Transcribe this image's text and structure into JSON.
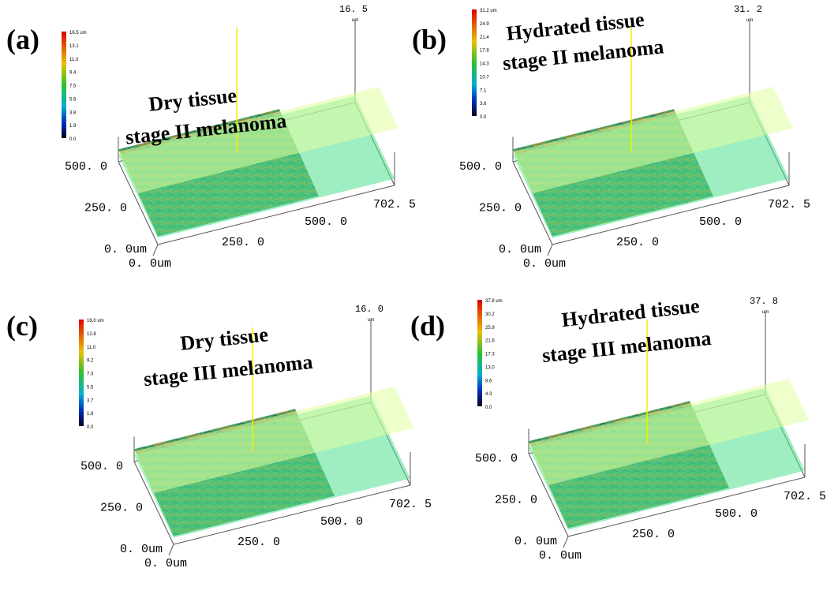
{
  "panels": [
    {
      "label": "(a)",
      "title": [
        "Dry tissue",
        "stage II melanoma"
      ],
      "z_max": "16. 5",
      "z_unit": "um",
      "colorbar": [
        "16.5 um",
        "13.1",
        "11.3",
        "9.4",
        "7.5",
        "5.6",
        "3.8",
        "1.9",
        "0.0"
      ],
      "y_axis": [
        "500. 0",
        "250. 0",
        "0. 0um"
      ],
      "x_axis": [
        "0. 0um",
        "250. 0",
        "500. 0",
        "702. 5"
      ]
    },
    {
      "label": "(b)",
      "title": [
        "Hydrated tissue",
        "stage II melanoma"
      ],
      "z_max": "31. 2",
      "z_unit": "um",
      "colorbar": [
        "31.2 um",
        "24.9",
        "21.4",
        "17.8",
        "14.3",
        "10.7",
        "7.1",
        "3.6",
        "0.0"
      ],
      "y_axis": [
        "500. 0",
        "250. 0",
        "0. 0um"
      ],
      "x_axis": [
        "0. 0um",
        "250. 0",
        "500. 0",
        "702. 5"
      ]
    },
    {
      "label": "(c)",
      "title": [
        "Dry tissue",
        "stage III melanoma"
      ],
      "z_max": "16. 0",
      "z_unit": "um",
      "colorbar": [
        "16.0 um",
        "12.8",
        "11.0",
        "9.2",
        "7.3",
        "5.5",
        "3.7",
        "1.8",
        "0.0"
      ],
      "y_axis": [
        "500. 0",
        "250. 0",
        "0. 0um"
      ],
      "x_axis": [
        "0. 0um",
        "250. 0",
        "500. 0",
        "702. 5"
      ]
    },
    {
      "label": "(d)",
      "title": [
        "Hydrated tissue",
        "stage III melanoma"
      ],
      "z_max": "37. 8",
      "z_unit": "um",
      "colorbar": [
        "37.8 um",
        "30.2",
        "25.9",
        "21.6",
        "17.3",
        "13.0",
        "8.6",
        "4.3",
        "0.0"
      ],
      "y_axis": [
        "500. 0",
        "250. 0",
        "0. 0um"
      ],
      "x_axis": [
        "0. 0um",
        "250. 0",
        "500. 0",
        "702. 5"
      ]
    }
  ]
}
